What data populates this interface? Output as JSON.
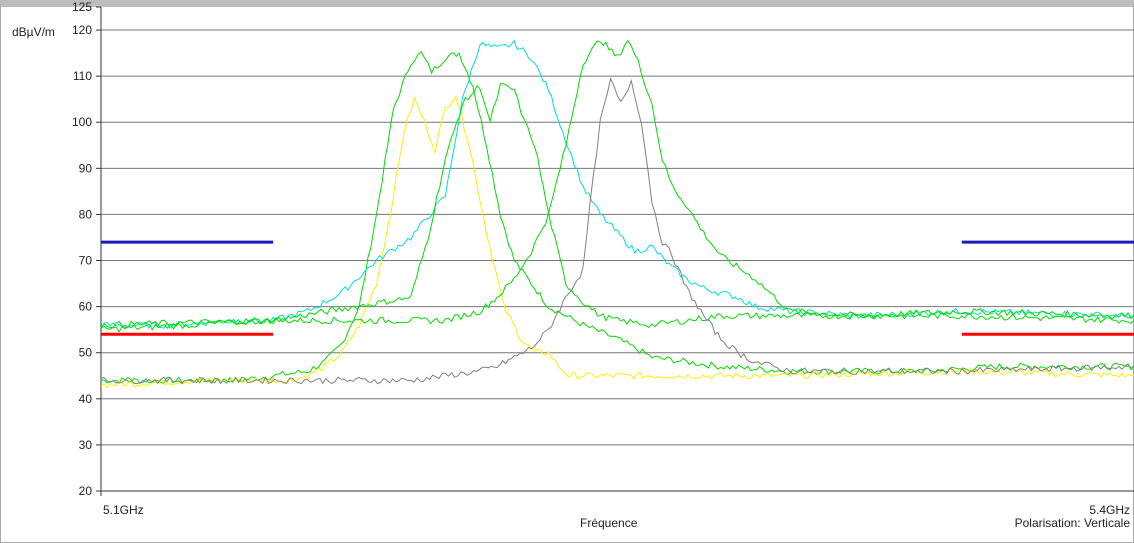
{
  "chart_data": {
    "type": "line",
    "ylabel": "dBµV/m",
    "xlabel": "Fréquence",
    "note": "Polarisation: Verticale",
    "x_tick_labels": [
      "5.1GHz",
      "5.4GHz"
    ],
    "xlim": [
      5.1,
      5.4
    ],
    "ylim": [
      20,
      125
    ],
    "yticks": [
      20,
      30,
      40,
      50,
      60,
      70,
      80,
      90,
      100,
      110,
      120,
      125
    ],
    "grid": "horizontal",
    "limit_lines": [
      {
        "color": "#1a1ab8",
        "value": 74,
        "segments": [
          [
            5.1,
            5.15
          ],
          [
            5.35,
            5.4
          ]
        ]
      },
      {
        "color": "#ff0000",
        "value": 54,
        "segments": [
          [
            5.1,
            5.15
          ],
          [
            5.35,
            5.4
          ]
        ]
      }
    ],
    "series": [
      {
        "color": "#00dd00",
        "x": [
          5.1,
          5.12,
          5.14,
          5.15,
          5.16,
          5.165,
          5.17,
          5.175,
          5.18,
          5.185,
          5.19,
          5.193,
          5.196,
          5.2,
          5.204,
          5.208,
          5.212,
          5.216,
          5.22,
          5.225,
          5.23,
          5.24,
          5.25,
          5.26,
          5.27,
          5.28,
          5.3,
          5.32,
          5.34,
          5.36,
          5.38,
          5.4
        ],
        "y": [
          44,
          44,
          44,
          45,
          46,
          48,
          52,
          60,
          80,
          103,
          113,
          115,
          111,
          114,
          115,
          108,
          95,
          80,
          70,
          65,
          60,
          56,
          53,
          49,
          48,
          47,
          46,
          46,
          46,
          47,
          47,
          47
        ]
      },
      {
        "color": "#ffee00",
        "x": [
          5.1,
          5.13,
          5.155,
          5.16,
          5.165,
          5.17,
          5.175,
          5.18,
          5.184,
          5.188,
          5.191,
          5.194,
          5.197,
          5.2,
          5.203,
          5.207,
          5.212,
          5.217,
          5.222,
          5.226,
          5.23,
          5.233,
          5.236,
          5.24,
          5.26,
          5.3,
          5.35,
          5.4
        ],
        "y": [
          43,
          44,
          44,
          45,
          47,
          50,
          56,
          65,
          80,
          98,
          105,
          100,
          94,
          103,
          106,
          95,
          76,
          60,
          53,
          50,
          50,
          47,
          45,
          45,
          45,
          45,
          46,
          45
        ]
      },
      {
        "color": "#00dddd",
        "x": [
          5.1,
          5.12,
          5.14,
          5.15,
          5.16,
          5.17,
          5.18,
          5.19,
          5.2,
          5.205,
          5.21,
          5.215,
          5.22,
          5.225,
          5.23,
          5.235,
          5.24,
          5.245,
          5.25,
          5.255,
          5.26,
          5.265,
          5.27,
          5.275,
          5.28,
          5.285,
          5.29,
          5.3,
          5.32,
          5.35,
          5.4
        ],
        "y": [
          56,
          56,
          57,
          57,
          59,
          63,
          70,
          75,
          84,
          105,
          117,
          116,
          117,
          114,
          107,
          96,
          86,
          80,
          76,
          72,
          73,
          69,
          66,
          64,
          63,
          62,
          60,
          59,
          58,
          59,
          58
        ]
      },
      {
        "color": "#00dd00",
        "x": [
          5.1,
          5.15,
          5.18,
          5.2,
          5.21,
          5.215,
          5.22,
          5.225,
          5.23,
          5.235,
          5.24,
          5.245,
          5.25,
          5.253,
          5.256,
          5.26,
          5.263,
          5.266,
          5.27,
          5.275,
          5.28,
          5.29,
          5.3,
          5.32,
          5.35,
          5.4
        ],
        "y": [
          55,
          57,
          57,
          57,
          59,
          62,
          66,
          72,
          80,
          95,
          113,
          118,
          114,
          118,
          113,
          104,
          92,
          86,
          82,
          76,
          71,
          66,
          59,
          58,
          59,
          58
        ]
      },
      {
        "color": "#00dd00",
        "x": [
          5.1,
          5.15,
          5.19,
          5.195,
          5.2,
          5.205,
          5.21,
          5.213,
          5.216,
          5.22,
          5.223,
          5.226,
          5.23,
          5.235,
          5.24,
          5.245,
          5.25,
          5.26,
          5.27,
          5.28,
          5.3,
          5.35,
          5.4
        ],
        "y": [
          56,
          57,
          62,
          75,
          92,
          104,
          108,
          100,
          108,
          107,
          100,
          95,
          80,
          65,
          61,
          58,
          57,
          56,
          57,
          58,
          58,
          58,
          57
        ]
      },
      {
        "color": "#808080",
        "x": [
          5.1,
          5.16,
          5.19,
          5.2,
          5.21,
          5.215,
          5.22,
          5.225,
          5.23,
          5.235,
          5.24,
          5.242,
          5.245,
          5.248,
          5.251,
          5.254,
          5.257,
          5.26,
          5.263,
          5.266,
          5.27,
          5.275,
          5.28,
          5.285,
          5.29,
          5.3,
          5.35,
          5.4
        ],
        "y": [
          44,
          44,
          44,
          45,
          46,
          47,
          49,
          51,
          55,
          62,
          68,
          82,
          100,
          109,
          104,
          109,
          100,
          83,
          74,
          71,
          64,
          58,
          53,
          50,
          48,
          46,
          46,
          47
        ]
      }
    ]
  }
}
